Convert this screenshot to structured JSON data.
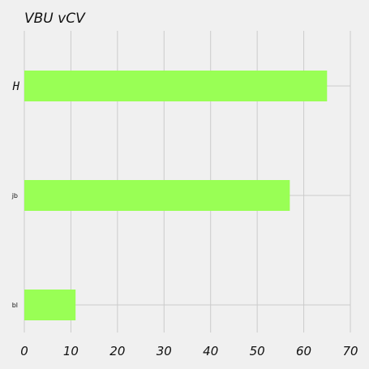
{
  "chart_data": {
    "type": "bar",
    "orientation": "horizontal",
    "title": "VBU  vCV",
    "xlabel": "",
    "ylabel": "",
    "categories": [
      "H",
      "jb",
      "bl"
    ],
    "values": [
      65,
      57,
      11
    ],
    "xlim": [
      0,
      70
    ],
    "xticks": [
      0,
      10,
      20,
      30,
      40,
      50,
      60,
      70
    ],
    "grid": true,
    "bar_color": "#99ff55",
    "background_color": "#f0f0f0",
    "grid_color": "#cbcbcb"
  }
}
